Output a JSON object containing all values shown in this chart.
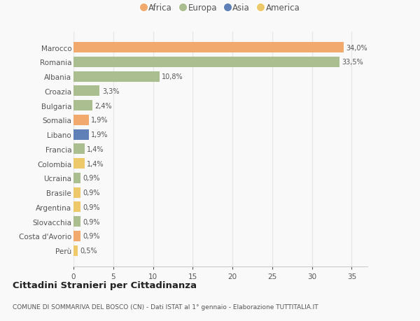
{
  "countries": [
    "Marocco",
    "Romania",
    "Albania",
    "Croazia",
    "Bulgaria",
    "Somalia",
    "Libano",
    "Francia",
    "Colombia",
    "Ucraina",
    "Brasile",
    "Argentina",
    "Slovacchia",
    "Costa d'Avorio",
    "Perù"
  ],
  "values": [
    34.0,
    33.5,
    10.8,
    3.3,
    2.4,
    1.9,
    1.9,
    1.4,
    1.4,
    0.9,
    0.9,
    0.9,
    0.9,
    0.9,
    0.5
  ],
  "labels": [
    "34,0%",
    "33,5%",
    "10,8%",
    "3,3%",
    "2,4%",
    "1,9%",
    "1,9%",
    "1,4%",
    "1,4%",
    "0,9%",
    "0,9%",
    "0,9%",
    "0,9%",
    "0,9%",
    "0,5%"
  ],
  "continents": [
    "Africa",
    "Europa",
    "Europa",
    "Europa",
    "Europa",
    "Africa",
    "Asia",
    "Europa",
    "America",
    "Europa",
    "America",
    "America",
    "Europa",
    "Africa",
    "America"
  ],
  "colors": {
    "Africa": "#F2A96E",
    "Europa": "#ABBE90",
    "Asia": "#6080B8",
    "America": "#EEC96A"
  },
  "legend_order": [
    "Africa",
    "Europa",
    "Asia",
    "America"
  ],
  "title": "Cittadini Stranieri per Cittadinanza",
  "subtitle": "COMUNE DI SOMMARIVA DEL BOSCO (CN) - Dati ISTAT al 1° gennaio - Elaborazione TUTTITALIA.IT",
  "xlim": [
    0,
    37
  ],
  "xticks": [
    0,
    5,
    10,
    15,
    20,
    25,
    30,
    35
  ],
  "background_color": "#f9f9f9",
  "grid_color": "#e8e8e8"
}
